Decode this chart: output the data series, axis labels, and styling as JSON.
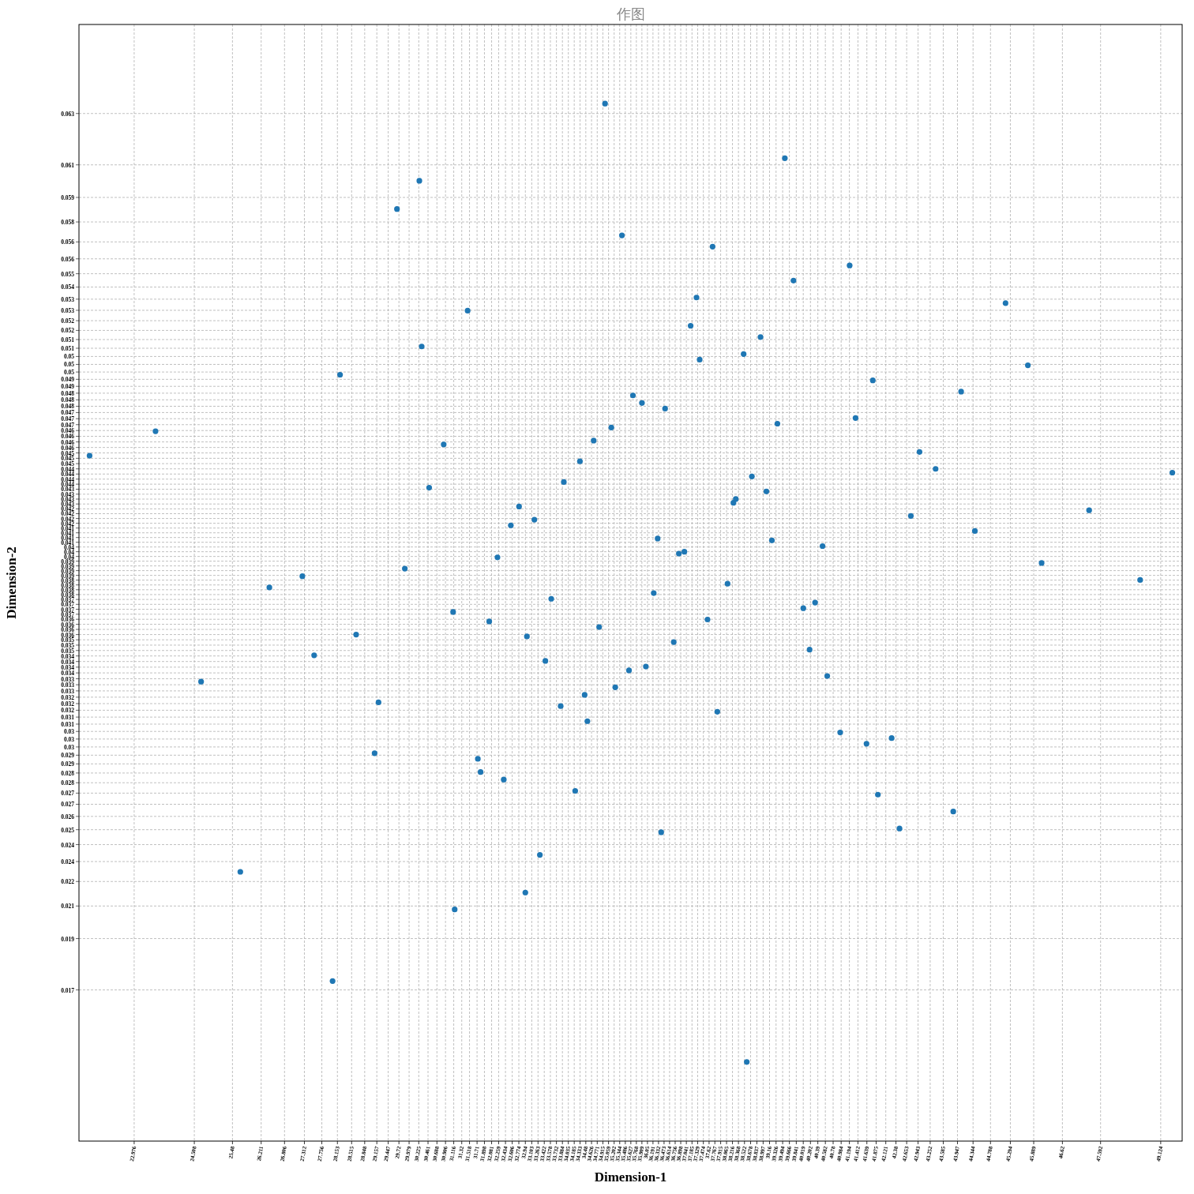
{
  "chart_data": {
    "type": "scatter",
    "title": "作图",
    "xlabel": "Dimension-1",
    "ylabel": "Dimension-2",
    "color": "#1f77b4",
    "marker": "circle",
    "grid": true,
    "xlim": [
      21.57,
      49.67
    ],
    "ylim": [
      0.0087,
      0.068
    ],
    "x": [
      34.97,
      39.55,
      30.24,
      29.67,
      35.4,
      37.71,
      41.2,
      39.77,
      37.3,
      45.17,
      31.47,
      37.15,
      38.93,
      30.3,
      38.5,
      37.38,
      45.74,
      28.22,
      41.79,
      44.04,
      35.68,
      35.91,
      36.5,
      41.35,
      39.36,
      23.52,
      35.13,
      34.68,
      30.86,
      42.98,
      21.84,
      34.33,
      43.39,
      49.42,
      38.71,
      33.92,
      30.49,
      39.08,
      38.3,
      38.24,
      32.78,
      47.3,
      42.76,
      33.17,
      32.57,
      44.39,
      36.31,
      39.22,
      40.51,
      36.99,
      36.85,
      32.23,
      46.09,
      29.87,
      27.26,
      48.6,
      38.09,
      26.42,
      36.21,
      33.6,
      40.32,
      40.02,
      31.1,
      37.58,
      32.02,
      34.82,
      28.63,
      32.98,
      36.72,
      40.18,
      27.56,
      33.45,
      36.01,
      35.58,
      40.63,
      24.68,
      35.23,
      34.45,
      29.2,
      33.84,
      37.83,
      34.52,
      40.96,
      42.27,
      41.63,
      29.1,
      31.73,
      31.8,
      32.39,
      34.21,
      41.92,
      43.84,
      42.47,
      36.4,
      33.31,
      25.68,
      32.94,
      31.14,
      28.03,
      38.58
    ],
    "values": [
      0.0638,
      0.0609,
      0.0597,
      0.0582,
      0.0568,
      0.0562,
      0.0552,
      0.0544,
      0.0535,
      0.0532,
      0.0528,
      0.052,
      0.0514,
      0.0509,
      0.0505,
      0.0502,
      0.0499,
      0.0494,
      0.0491,
      0.0485,
      0.0483,
      0.0479,
      0.0476,
      0.0471,
      0.0468,
      0.0464,
      0.0466,
      0.0459,
      0.0457,
      0.0453,
      0.0451,
      0.0448,
      0.0444,
      0.0442,
      0.044,
      0.0437,
      0.0434,
      0.0432,
      0.0428,
      0.0426,
      0.0424,
      0.0422,
      0.0419,
      0.0417,
      0.0414,
      0.0411,
      0.0407,
      0.0406,
      0.0403,
      0.04,
      0.0399,
      0.0397,
      0.0394,
      0.0391,
      0.0387,
      0.0385,
      0.0383,
      0.0381,
      0.0378,
      0.0375,
      0.0373,
      0.037,
      0.0368,
      0.0364,
      0.0363,
      0.036,
      0.0356,
      0.0355,
      0.0352,
      0.0348,
      0.0345,
      0.0342,
      0.0339,
      0.0337,
      0.0334,
      0.0331,
      0.0328,
      0.0324,
      0.032,
      0.0318,
      0.0315,
      0.031,
      0.0304,
      0.0301,
      0.0298,
      0.0293,
      0.029,
      0.0283,
      0.0279,
      0.0273,
      0.0271,
      0.0262,
      0.0253,
      0.0251,
      0.0239,
      0.023,
      0.0219,
      0.021,
      0.0172,
      0.0129
    ],
    "xticks": [
      22.976,
      24.508,
      25.48,
      26.211,
      26.806,
      27.312,
      27.756,
      28.153,
      28.515,
      28.848,
      29.157,
      29.447,
      29.72,
      29.979,
      30.225,
      30.461,
      30.688,
      30.906,
      31.116,
      31.32,
      31.518,
      31.71,
      31.898,
      32.081,
      32.259,
      32.434,
      32.606,
      32.774,
      32.94,
      33.103,
      33.263,
      33.422,
      33.578,
      33.732,
      33.884,
      34.035,
      34.185,
      34.333,
      34.48,
      34.626,
      34.771,
      34.915,
      35.059,
      35.202,
      35.344,
      35.486,
      35.627,
      35.768,
      35.909,
      36.05,
      36.191,
      36.332,
      36.473,
      36.614,
      36.756,
      36.898,
      37.041,
      37.185,
      37.329,
      37.474,
      37.62,
      37.767,
      37.915,
      38.065,
      38.216,
      38.368,
      38.522,
      38.678,
      38.837,
      38.997,
      39.16,
      39.326,
      39.494,
      39.666,
      39.841,
      40.019,
      40.202,
      40.39,
      40.582,
      40.78,
      40.984,
      41.194,
      41.412,
      41.639,
      41.875,
      42.121,
      42.38,
      42.653,
      42.943,
      43.252,
      43.585,
      43.947,
      44.344,
      44.788,
      45.294,
      45.889,
      46.62,
      47.592,
      49.124
    ],
    "yticks": [
      {
        "value": 0.016728,
        "label": "0.017"
      },
      {
        "value": 0.019455,
        "label": "0.019"
      },
      {
        "value": 0.021185,
        "label": "0.021"
      },
      {
        "value": 0.022487,
        "label": "0.022"
      },
      {
        "value": 0.023546,
        "label": "0.024"
      },
      {
        "value": 0.024446,
        "label": "0.024"
      },
      {
        "value": 0.025237,
        "label": "0.025"
      },
      {
        "value": 0.025943,
        "label": "0.026"
      },
      {
        "value": 0.026588,
        "label": "0.027"
      },
      {
        "value": 0.02718,
        "label": "0.027"
      },
      {
        "value": 0.02773,
        "label": "0.028"
      },
      {
        "value": 0.028247,
        "label": "0.028"
      },
      {
        "value": 0.028733,
        "label": "0.029"
      },
      {
        "value": 0.029194,
        "label": "0.029"
      },
      {
        "value": 0.029631,
        "label": "0.03"
      },
      {
        "value": 0.030052,
        "label": "0.03"
      },
      {
        "value": 0.030456,
        "label": "0.03"
      },
      {
        "value": 0.030844,
        "label": "0.031"
      },
      {
        "value": 0.031217,
        "label": "0.031"
      },
      {
        "value": 0.031581,
        "label": "0.032"
      },
      {
        "value": 0.031933,
        "label": "0.032"
      },
      {
        "value": 0.032275,
        "label": "0.032"
      },
      {
        "value": 0.032609,
        "label": "0.033"
      },
      {
        "value": 0.032935,
        "label": "0.033"
      },
      {
        "value": 0.033252,
        "label": "0.033"
      },
      {
        "value": 0.033564,
        "label": "0.034"
      },
      {
        "value": 0.03387,
        "label": "0.034"
      },
      {
        "value": 0.034169,
        "label": "0.034"
      },
      {
        "value": 0.034464,
        "label": "0.034"
      },
      {
        "value": 0.034754,
        "label": "0.035"
      },
      {
        "value": 0.035039,
        "label": "0.035"
      },
      {
        "value": 0.035322,
        "label": "0.035"
      },
      {
        "value": 0.0356,
        "label": "0.036"
      },
      {
        "value": 0.035874,
        "label": "0.036"
      },
      {
        "value": 0.036145,
        "label": "0.036"
      },
      {
        "value": 0.036413,
        "label": "0.036"
      },
      {
        "value": 0.03668,
        "label": "0.037"
      },
      {
        "value": 0.036944,
        "label": "0.037"
      },
      {
        "value": 0.037205,
        "label": "0.037"
      },
      {
        "value": 0.037465,
        "label": "0.037"
      },
      {
        "value": 0.037723,
        "label": "0.038"
      },
      {
        "value": 0.03798,
        "label": "0.038"
      },
      {
        "value": 0.038236,
        "label": "0.038"
      },
      {
        "value": 0.038491,
        "label": "0.038"
      },
      {
        "value": 0.038743,
        "label": "0.039"
      },
      {
        "value": 0.038996,
        "label": "0.039"
      },
      {
        "value": 0.039247,
        "label": "0.039"
      },
      {
        "value": 0.039498,
        "label": "0.039"
      },
      {
        "value": 0.039749,
        "label": "0.04"
      },
      {
        "value": 0.04,
        "label": "0.04"
      },
      {
        "value": 0.040251,
        "label": "0.04"
      },
      {
        "value": 0.040502,
        "label": "0.041"
      },
      {
        "value": 0.040753,
        "label": "0.041"
      },
      {
        "value": 0.041004,
        "label": "0.041"
      },
      {
        "value": 0.041257,
        "label": "0.041"
      },
      {
        "value": 0.041509,
        "label": "0.042"
      },
      {
        "value": 0.041764,
        "label": "0.042"
      },
      {
        "value": 0.04202,
        "label": "0.042"
      },
      {
        "value": 0.042277,
        "label": "0.042"
      },
      {
        "value": 0.042535,
        "label": "0.043"
      },
      {
        "value": 0.042795,
        "label": "0.043"
      },
      {
        "value": 0.043056,
        "label": "0.043"
      },
      {
        "value": 0.04332,
        "label": "0.043"
      },
      {
        "value": 0.043587,
        "label": "0.044"
      },
      {
        "value": 0.043855,
        "label": "0.044"
      },
      {
        "value": 0.044126,
        "label": "0.044"
      },
      {
        "value": 0.0444,
        "label": "0.044"
      },
      {
        "value": 0.044678,
        "label": "0.045"
      },
      {
        "value": 0.044961,
        "label": "0.045"
      },
      {
        "value": 0.045246,
        "label": "0.045"
      },
      {
        "value": 0.045536,
        "label": "0.046"
      },
      {
        "value": 0.045831,
        "label": "0.046"
      },
      {
        "value": 0.04613,
        "label": "0.046"
      },
      {
        "value": 0.046436,
        "label": "0.046"
      },
      {
        "value": 0.046748,
        "label": "0.047"
      },
      {
        "value": 0.047065,
        "label": "0.047"
      },
      {
        "value": 0.047391,
        "label": "0.047"
      },
      {
        "value": 0.047725,
        "label": "0.048"
      },
      {
        "value": 0.048067,
        "label": "0.048"
      },
      {
        "value": 0.048419,
        "label": "0.048"
      },
      {
        "value": 0.048783,
        "label": "0.049"
      },
      {
        "value": 0.049156,
        "label": "0.049"
      },
      {
        "value": 0.049544,
        "label": "0.05"
      },
      {
        "value": 0.049948,
        "label": "0.05"
      },
      {
        "value": 0.050369,
        "label": "0.05"
      },
      {
        "value": 0.050806,
        "label": "0.051"
      },
      {
        "value": 0.051267,
        "label": "0.051"
      },
      {
        "value": 0.051753,
        "label": "0.052"
      },
      {
        "value": 0.05227,
        "label": "0.052"
      },
      {
        "value": 0.05282,
        "label": "0.053"
      },
      {
        "value": 0.053412,
        "label": "0.053"
      },
      {
        "value": 0.054057,
        "label": "0.054"
      },
      {
        "value": 0.054763,
        "label": "0.055"
      },
      {
        "value": 0.055554,
        "label": "0.056"
      },
      {
        "value": 0.056454,
        "label": "0.056"
      },
      {
        "value": 0.057513,
        "label": "0.058"
      },
      {
        "value": 0.058815,
        "label": "0.059"
      },
      {
        "value": 0.060545,
        "label": "0.061"
      },
      {
        "value": 0.063272,
        "label": "0.063"
      }
    ]
  }
}
